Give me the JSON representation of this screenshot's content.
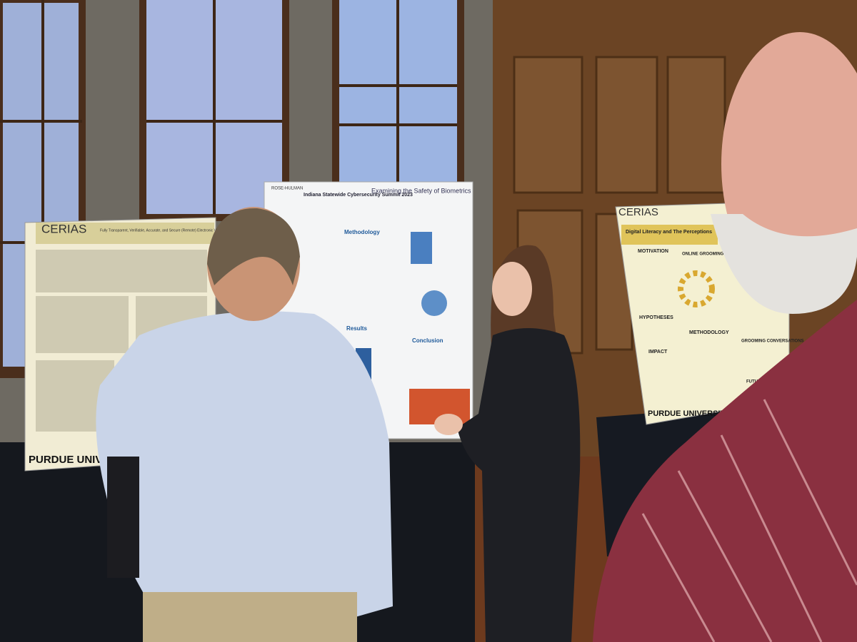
{
  "posters": [
    {
      "org": "CERIAS",
      "title": "Fully Transparent, Verifiable, Accurate, and Secure (Remote) Electronic Voting Enabling Open and Fair",
      "footer": "PURDUE UNIVERSITY"
    },
    {
      "org": "ROSE-HULMAN",
      "event": "Indiana Statewide Cybersecurity Summit 2023",
      "title": "Examining the Safety of Biometrics",
      "sections": [
        "Methodology",
        "Results",
        "Conclusion"
      ]
    },
    {
      "org": "CERIAS",
      "title": "Digital Literacy and The Perceptions",
      "sections": [
        "MOTIVATION",
        "ONLINE GROOMING PROCESS",
        "HYPOTHESES",
        "METHODOLOGY",
        "IMPACT",
        "GROOMING CONVERSATIONS",
        "FUTURE"
      ],
      "footer": "PURDUE UNIVERSITY"
    }
  ]
}
